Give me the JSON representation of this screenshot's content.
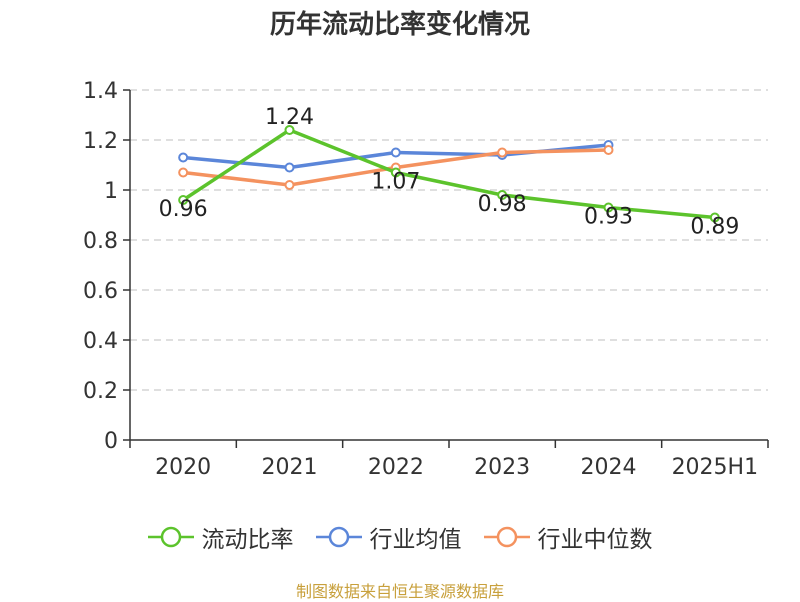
{
  "title": "历年流动比率变化情况",
  "source": "制图数据来自恒生聚源数据库",
  "chart_data": {
    "type": "line",
    "categories": [
      "2020",
      "2021",
      "2022",
      "2023",
      "2024",
      "2025H1"
    ],
    "ylim": [
      0,
      1.4
    ],
    "yticks": [
      "0",
      "0.2",
      "0.4",
      "0.6",
      "0.8",
      "1",
      "1.2",
      "1.4"
    ],
    "grid": true,
    "legend_position": "bottom",
    "series": [
      {
        "name": "流动比率",
        "color": "#5cc32c",
        "values": [
          0.96,
          1.24,
          1.07,
          0.98,
          0.93,
          0.89
        ],
        "labels": [
          "0.96",
          "1.24",
          "1.07",
          "0.98",
          "0.93",
          "0.89"
        ]
      },
      {
        "name": "行业均值",
        "color": "#5b86d9",
        "values": [
          1.13,
          1.09,
          1.15,
          1.14,
          1.18,
          null
        ]
      },
      {
        "name": "行业中位数",
        "color": "#f4925f",
        "values": [
          1.07,
          1.02,
          1.09,
          1.15,
          1.16,
          null
        ]
      }
    ]
  }
}
